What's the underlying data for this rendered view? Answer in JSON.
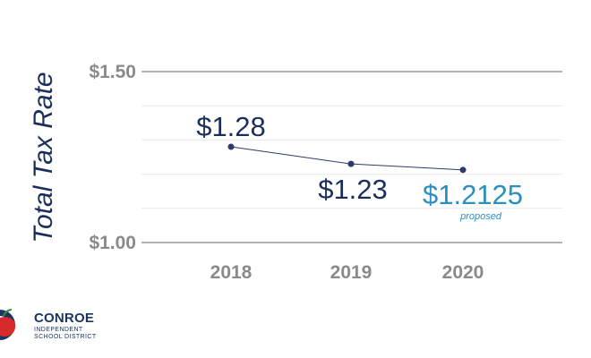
{
  "chart_data": {
    "type": "line",
    "ylabel": "Total Tax Rate",
    "xlabel": "",
    "title": "",
    "categories": [
      "2018",
      "2019",
      "2020"
    ],
    "values": [
      1.28,
      1.23,
      1.2125
    ],
    "data_labels": [
      "$1.28",
      "$1.23",
      "$1.2125"
    ],
    "data_label_notes": [
      "",
      "",
      "proposed"
    ],
    "y_ticks": [
      1.0,
      1.5
    ],
    "y_tick_labels": [
      "$1.00",
      "$1.50"
    ],
    "ylim": [
      1.0,
      1.5
    ],
    "grid": true,
    "colors": {
      "line": "#2e3a6a",
      "label_default": "#1b2f5c",
      "label_highlight": "#2a8fc0",
      "axis_text": "#8a8a8a",
      "axis_line": "#9a9a9a",
      "grid": "#e9e9e9"
    }
  },
  "logo": {
    "name": "CONROE",
    "sub_line1": "INDEPENDENT",
    "sub_line2": "SCHOOL DISTRICT",
    "icon": "apple-c-logo-icon"
  }
}
